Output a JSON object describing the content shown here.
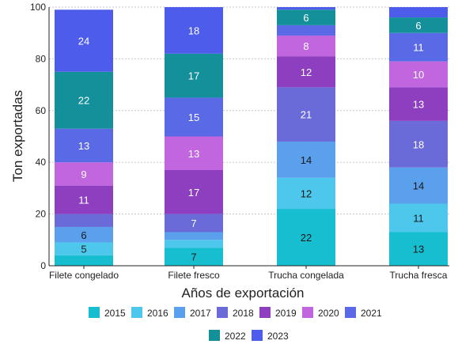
{
  "chart_data": {
    "type": "bar",
    "stacked": true,
    "categories": [
      "Filete congelado",
      "Filete fresco",
      "Trucha congelada",
      "Trucha fresca"
    ],
    "xlabel": "Años de exportación",
    "ylabel": "Ton  exportadas",
    "ylim": [
      0,
      100
    ],
    "yticks": [
      0,
      20,
      40,
      60,
      80,
      100
    ],
    "grid": true,
    "legend_position": "bottom",
    "series": [
      {
        "name": "2015",
        "color": "#17becf",
        "values": [
          4,
          7,
          22,
          13
        ],
        "labels": [
          "",
          "7",
          "22",
          "13"
        ]
      },
      {
        "name": "2016",
        "color": "#4dc8ec",
        "values": [
          5,
          3,
          12,
          11
        ],
        "labels": [
          "5",
          "",
          "12",
          "11"
        ]
      },
      {
        "name": "2017",
        "color": "#5aa0ec",
        "values": [
          6,
          3,
          14,
          14
        ],
        "labels": [
          "6",
          "",
          "14",
          "14"
        ]
      },
      {
        "name": "2018",
        "color": "#6a6ad8",
        "values": [
          5,
          7,
          21,
          18
        ],
        "labels": [
          "",
          "7",
          "21",
          "18"
        ]
      },
      {
        "name": "2019",
        "color": "#8e3fc0",
        "values": [
          11,
          17,
          12,
          13
        ],
        "labels": [
          "11",
          "17",
          "12",
          "13"
        ]
      },
      {
        "name": "2020",
        "color": "#c266e0",
        "values": [
          9,
          13,
          8,
          10
        ],
        "labels": [
          "9",
          "13",
          "8",
          "10"
        ]
      },
      {
        "name": "2021",
        "color": "#5a6ae6",
        "values": [
          13,
          15,
          4,
          11
        ],
        "labels": [
          "13",
          "15",
          "",
          "11"
        ]
      },
      {
        "name": "2022",
        "color": "#13909a",
        "values": [
          22,
          17,
          6,
          6
        ],
        "labels": [
          "22",
          "17",
          "6",
          "6"
        ]
      },
      {
        "name": "2023",
        "color": "#4e5cec",
        "values": [
          24,
          18,
          1,
          4
        ],
        "labels": [
          "24",
          "18",
          "",
          ""
        ]
      }
    ]
  }
}
